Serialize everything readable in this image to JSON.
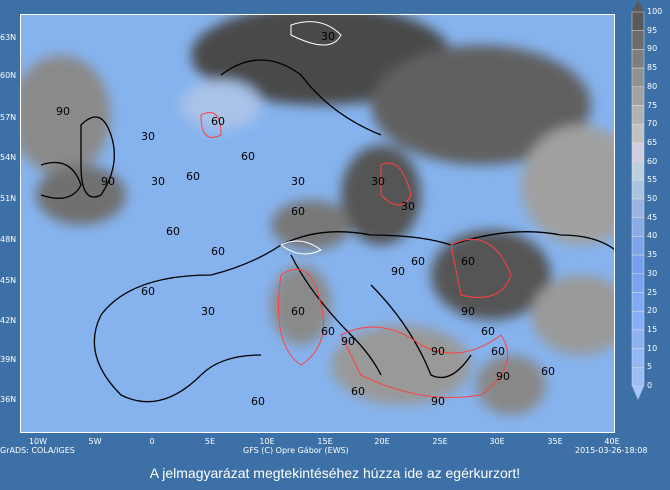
{
  "map": {
    "lat_labels": [
      "63N",
      "60N",
      "57N",
      "54N",
      "51N",
      "48N",
      "45N",
      "42N",
      "39N",
      "36N"
    ],
    "lon_labels": [
      "10W",
      "5W",
      "0",
      "5E",
      "10E",
      "15E",
      "20E",
      "25E",
      "30E",
      "35E",
      "40E"
    ],
    "contour_labels": [
      "90",
      "30",
      "60",
      "30",
      "60",
      "60",
      "90",
      "60",
      "30",
      "60",
      "30",
      "60",
      "90",
      "90",
      "60",
      "90",
      "60",
      "60",
      "30",
      "60",
      "90",
      "30",
      "60",
      "60",
      "60",
      "90",
      "60",
      "60",
      "60",
      "90",
      "30"
    ],
    "credit_left": "GrADS: COLA/IGES",
    "credit_center": "GFS (C) Opre Gábor (EWS)",
    "timestamp": "2015-03-26-18:08"
  },
  "colorbar": {
    "labels": [
      "100",
      "95",
      "90",
      "85",
      "80",
      "75",
      "70",
      "65",
      "60",
      "55",
      "50",
      "45",
      "40",
      "35",
      "30",
      "25",
      "20",
      "15",
      "10",
      "5",
      "0"
    ],
    "colors": [
      "#5a5a5a",
      "#6c6c6c",
      "#7e7e7e",
      "#909090",
      "#a2a2a2",
      "#b2b2b2",
      "#c2c2c2",
      "#d0cde0",
      "#bcd0e0",
      "#aac4e0",
      "#9ab4e2",
      "#8aace6",
      "#7ea4ea",
      "#76a0ee",
      "#7aa4f0",
      "#80aaf2",
      "#86aef2",
      "#8cb2f2",
      "#94b8f4",
      "#9cbef4",
      "#a6c6f6"
    ]
  },
  "hint": "A jelmagyarázat megtekintéséhez húzza ide az egérkurzort!"
}
